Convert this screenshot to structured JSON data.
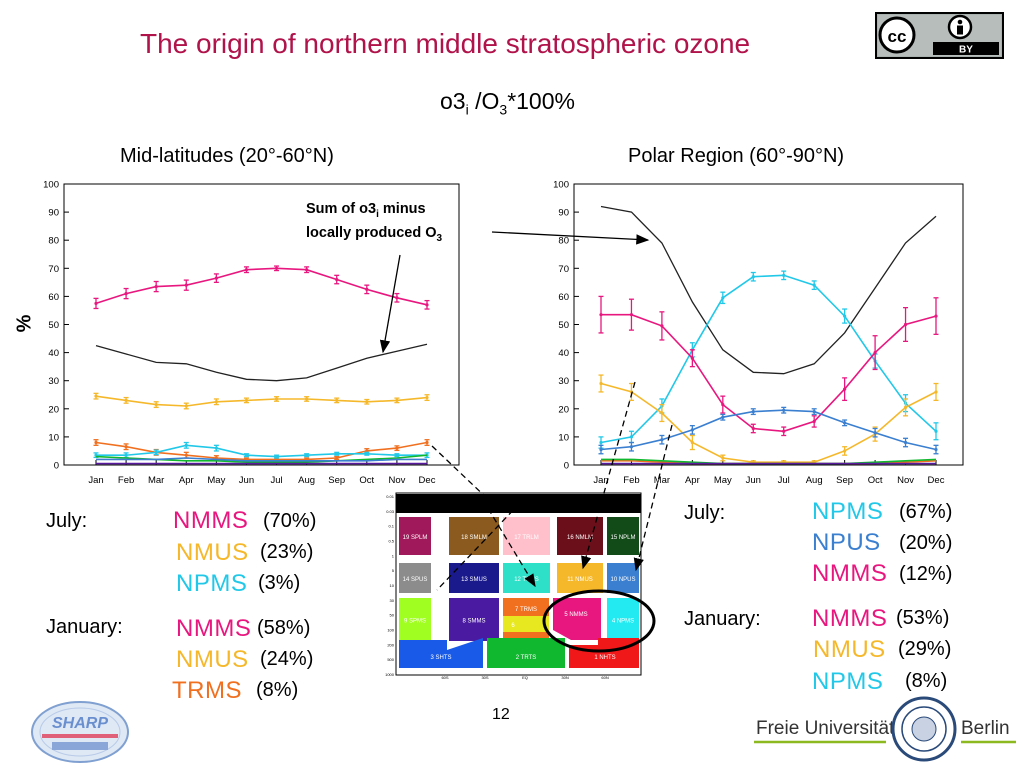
{
  "slide": {
    "title": "The origin of northern middle stratospheric ozone",
    "subtitle_main": "o3",
    "subtitle_sub1": "i",
    "subtitle_mid": " /O",
    "subtitle_sub2": "3",
    "subtitle_end": "*100%",
    "left_panel_title": "Mid-latitudes (20°-60°N)",
    "right_panel_title": "Polar Region (60°-90°N)",
    "y_axis_label": "%",
    "annotation_line1_a": "Sum of o3",
    "annotation_line1_sub": "i",
    "annotation_line1_b": " minus",
    "annotation_line2_a": "locally produced O",
    "annotation_line2_sub": "3",
    "page_number": "12",
    "cc_label": "cc",
    "by_label": "BY",
    "sharp_logo_text": "SHARP",
    "fu_logo_text": "Freie Universität",
    "fu_logo_city": "Berlin"
  },
  "left_summary": {
    "july_label": "July:",
    "january_label": "January:",
    "july": [
      {
        "tracer": "NMMS",
        "pct": "(70%)",
        "color": "#e8177f"
      },
      {
        "tracer": "NMUS",
        "pct": "(23%)",
        "color": "#f5b82b"
      },
      {
        "tracer": "NPMS",
        "pct": "(3%)",
        "color": "#22c8e8"
      }
    ],
    "january": [
      {
        "tracer": "NMMS",
        "pct": "(58%)",
        "color": "#e8177f"
      },
      {
        "tracer": "NMUS",
        "pct": "(24%)",
        "color": "#f5b82b"
      },
      {
        "tracer": "TRMS",
        "pct": "(8%)",
        "color": "#f07020"
      }
    ]
  },
  "right_summary": {
    "july_label": "July:",
    "january_label": "January:",
    "july": [
      {
        "tracer": "NPMS",
        "pct": "(67%)",
        "color": "#22c8e8"
      },
      {
        "tracer": "NPUS",
        "pct": "(20%)",
        "color": "#3a7fd0"
      },
      {
        "tracer": "NMMS",
        "pct": "(12%)",
        "color": "#e8177f"
      }
    ],
    "january": [
      {
        "tracer": "NMMS",
        "pct": "(53%)",
        "color": "#e8177f"
      },
      {
        "tracer": "NMUS",
        "pct": "(29%)",
        "color": "#f5b82b"
      },
      {
        "tracer": "NPMS",
        "pct": "(8%)",
        "color": "#22c8e8"
      }
    ]
  },
  "region_map": {
    "boxes": [
      {
        "label": "19 SPLM",
        "color": "#a0195a"
      },
      {
        "label": "18 SMLM",
        "color": "#8b5a1e"
      },
      {
        "label": "17 TRLM",
        "color": "#ffc0cb"
      },
      {
        "label": "16 NMLM",
        "color": "#6b0f1a"
      },
      {
        "label": "15 NPLM",
        "color": "#124a18"
      },
      {
        "label": "14 SPUS",
        "color": "#8c8c8c"
      },
      {
        "label": "13 SMUS",
        "color": "#1a1a8c"
      },
      {
        "label": "12 TRUS",
        "color": "#2ee0c8"
      },
      {
        "label": "11 NMUS",
        "color": "#f5b82b"
      },
      {
        "label": "10 NPUS",
        "color": "#3a7fd0"
      },
      {
        "label": "9 SPMS",
        "color": "#a0ff20"
      },
      {
        "label": "8 SMMS",
        "color": "#4a1aa0"
      },
      {
        "label": "7 TRMS",
        "color": "#f07020"
      },
      {
        "label": "6",
        "color": "#e8e820"
      },
      {
        "label": "5 NMMS",
        "color": "#e8177f"
      },
      {
        "label": "4 NPMS",
        "color": "#22eaf0"
      },
      {
        "label": "3 SHTS",
        "color": "#1a5ae8"
      },
      {
        "label": "2 TRTS",
        "color": "#10b830"
      },
      {
        "label": "1 NHTS",
        "color": "#f01818"
      }
    ],
    "y_ticks": [
      "0.01",
      "0.03",
      "0.1",
      "0.5",
      "1",
      "5",
      "10",
      "30",
      "50",
      "100",
      "200",
      "500",
      "1000"
    ],
    "x_ticks": [
      "60S",
      "30S",
      "EQ",
      "30N",
      "60N"
    ]
  },
  "chart_data": [
    {
      "type": "line",
      "title": "Mid-latitudes (20°-60°N)",
      "ylabel": "%",
      "ylim": [
        0,
        100
      ],
      "yticks": [
        0,
        10,
        20,
        30,
        40,
        50,
        60,
        70,
        80,
        90,
        100
      ],
      "categories": [
        "Jan",
        "Feb",
        "Mar",
        "Apr",
        "May",
        "Jun",
        "Jul",
        "Aug",
        "Sep",
        "Oct",
        "Nov",
        "Dec"
      ],
      "grid": false,
      "series": [
        {
          "key": "nmms",
          "color": "#e8177f",
          "values": [
            57.5,
            61,
            63.5,
            64,
            66.5,
            69.5,
            70,
            69.5,
            66,
            62.5,
            59.5,
            57
          ],
          "errors": [
            1.8,
            1.8,
            1.8,
            1.8,
            1.5,
            1,
            0.8,
            1,
            1.5,
            1.5,
            1.5,
            1.5
          ]
        },
        {
          "key": "sum",
          "color": "#222222",
          "values": [
            42.5,
            39.5,
            36.5,
            36,
            33,
            30.5,
            30,
            31,
            34.5,
            38,
            40.5,
            43
          ],
          "errors": null
        },
        {
          "key": "nmus",
          "color": "#f5b82b",
          "values": [
            24.5,
            23,
            21.5,
            21,
            22.5,
            23,
            23.5,
            23.5,
            23,
            22.5,
            23,
            24
          ],
          "errors": [
            1,
            1,
            1,
            1,
            1,
            0.8,
            0.8,
            0.8,
            0.8,
            0.8,
            0.8,
            1
          ]
        },
        {
          "key": "trms",
          "color": "#f07020",
          "values": [
            8,
            6.5,
            4.5,
            3.5,
            2.5,
            2,
            2,
            2,
            2.5,
            5,
            6,
            8
          ],
          "errors": [
            1,
            1,
            1,
            1,
            0.8,
            0.5,
            0.5,
            0.5,
            0.5,
            0.8,
            0.8,
            1
          ]
        },
        {
          "key": "npms",
          "color": "#22c8e8",
          "values": [
            3.5,
            3.5,
            4.5,
            7,
            6,
            3.5,
            3,
            3.5,
            4,
            4,
            3.5,
            3.5
          ],
          "errors": [
            0.8,
            0.8,
            0.8,
            1,
            1,
            0.5,
            0.5,
            0.5,
            0.5,
            0.5,
            0.5,
            0.8
          ]
        },
        {
          "key": "tr-green",
          "color": "#10b830",
          "values": [
            3,
            2.5,
            2,
            1.5,
            1.5,
            1,
            1,
            1,
            1.5,
            2,
            2.5,
            3.5
          ],
          "errors": null
        },
        {
          "key": "npus",
          "color": "#3a7fd0",
          "values": [
            2,
            2,
            2,
            2.5,
            2,
            1.5,
            1.5,
            1.5,
            1.5,
            1.5,
            2,
            2
          ],
          "errors": null
        },
        {
          "key": "other",
          "color": "#5a1aa0",
          "values": [
            0.5,
            0.5,
            0.5,
            0.5,
            0.5,
            0.5,
            0.5,
            0.5,
            0.5,
            0.5,
            0.5,
            0.5
          ],
          "errors": null
        }
      ]
    },
    {
      "type": "line",
      "title": "Polar Region (60°-90°N)",
      "ylim": [
        0,
        100
      ],
      "yticks": [
        0,
        10,
        20,
        30,
        40,
        50,
        60,
        70,
        80,
        90,
        100
      ],
      "categories": [
        "Jan",
        "Feb",
        "Mar",
        "Apr",
        "May",
        "Jun",
        "Jul",
        "Aug",
        "Sep",
        "Oct",
        "Nov",
        "Dec"
      ],
      "grid": false,
      "series": [
        {
          "key": "sum",
          "color": "#222222",
          "values": [
            92,
            90,
            79,
            58,
            41,
            33,
            32.5,
            36,
            47,
            63,
            79,
            88.5
          ],
          "errors": null
        },
        {
          "key": "npms",
          "color": "#22c8e8",
          "values": [
            8,
            10,
            21,
            41,
            59.5,
            67,
            67.5,
            64,
            53,
            37,
            22,
            12
          ],
          "errors": [
            2,
            2,
            2.5,
            2.5,
            2,
            1.5,
            1.5,
            1.5,
            2.5,
            2.5,
            3,
            3
          ]
        },
        {
          "key": "nmms",
          "color": "#e8177f",
          "values": [
            53.5,
            53.5,
            49.5,
            38,
            21.5,
            13,
            12,
            15.5,
            27,
            40,
            50,
            53
          ],
          "errors": [
            6.5,
            5.5,
            5,
            3,
            3,
            1.5,
            1.5,
            2,
            4,
            6,
            6,
            6.5
          ]
        },
        {
          "key": "nmus",
          "color": "#f5b82b",
          "values": [
            29,
            26,
            18.5,
            8,
            2.5,
            1,
            1,
            1,
            5,
            11,
            20.5,
            26
          ],
          "errors": [
            3,
            3,
            3,
            2.5,
            1,
            0.5,
            0.5,
            0.5,
            1.5,
            2.5,
            3,
            3
          ]
        },
        {
          "key": "npus",
          "color": "#3a7fd0",
          "values": [
            5.5,
            6.5,
            9,
            12.5,
            17,
            19,
            19.5,
            19,
            15,
            11.5,
            8,
            5.5
          ],
          "errors": [
            1.5,
            1.5,
            1.5,
            1.5,
            1,
            1,
            1,
            1,
            1,
            1.5,
            1.5,
            1.5
          ]
        },
        {
          "key": "trms",
          "color": "#f07020",
          "values": [
            1.5,
            1.5,
            1,
            0.5,
            0.5,
            0.5,
            0.5,
            0.5,
            0.5,
            0.5,
            1,
            1.5
          ],
          "errors": null
        },
        {
          "key": "tr-green",
          "color": "#10b830",
          "values": [
            2,
            2,
            1.5,
            1,
            0.5,
            0.5,
            0.5,
            0.5,
            0.5,
            1,
            1.5,
            2
          ],
          "errors": null
        },
        {
          "key": "other",
          "color": "#5a1aa0",
          "values": [
            0.5,
            0.5,
            0.5,
            0.5,
            0.5,
            0.5,
            0.5,
            0.5,
            0.5,
            0.5,
            0.5,
            0.5
          ],
          "errors": null
        }
      ]
    }
  ]
}
